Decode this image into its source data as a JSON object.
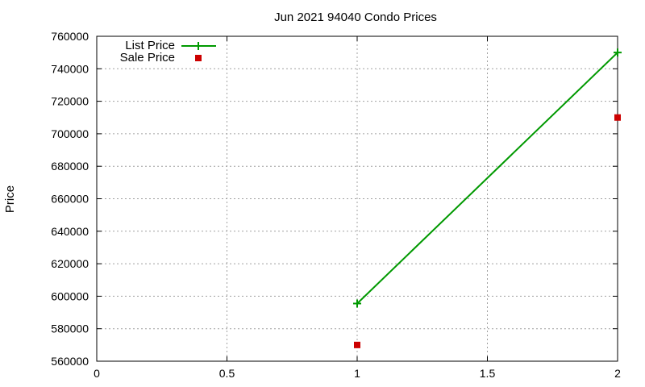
{
  "chart_data": {
    "type": "line",
    "title": "Jun 2021 94040 Condo Prices",
    "xlabel": "",
    "ylabel": "Price",
    "xlim": [
      0,
      2
    ],
    "ylim": [
      560000,
      760000
    ],
    "xticks": [
      0,
      0.5,
      1,
      1.5,
      2
    ],
    "xtick_labels": [
      "0",
      "0.5",
      "1",
      "1.5",
      "2"
    ],
    "yticks": [
      560000,
      580000,
      600000,
      620000,
      640000,
      660000,
      680000,
      700000,
      720000,
      740000,
      760000
    ],
    "ytick_labels": [
      "560000",
      "580000",
      "600000",
      "620000",
      "640000",
      "660000",
      "680000",
      "700000",
      "720000",
      "740000",
      "760000"
    ],
    "grid": true,
    "legend_position": "top-left",
    "series": [
      {
        "name": "List Price",
        "style": "line-plus",
        "color": "#009900",
        "x": [
          1,
          2
        ],
        "y": [
          595500,
          750000
        ]
      },
      {
        "name": "Sale Price",
        "style": "square-points",
        "color": "#cc0000",
        "x": [
          1,
          2
        ],
        "y": [
          570000,
          710000
        ]
      }
    ]
  }
}
